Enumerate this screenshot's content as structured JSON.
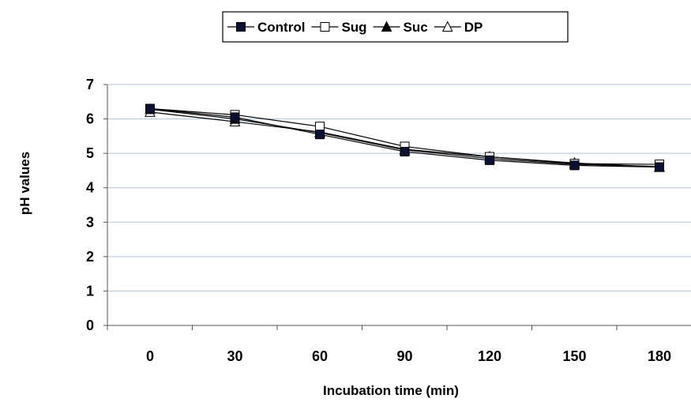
{
  "chart_data": {
    "type": "line",
    "x": [
      0,
      30,
      60,
      90,
      120,
      150,
      180
    ],
    "xlabel": "Incubation time (min)",
    "ylabel": "pH values",
    "ylim": [
      0,
      7
    ],
    "yticks": [
      0,
      1,
      2,
      3,
      4,
      5,
      6,
      7
    ],
    "grid": true,
    "legend_position": "top",
    "series": [
      {
        "name": "Control",
        "marker": "filled-square",
        "color": "#000000",
        "values": [
          6.3,
          6.05,
          5.55,
          5.05,
          4.8,
          4.65,
          4.6
        ]
      },
      {
        "name": "Sug",
        "marker": "open-square",
        "color": "#000000",
        "values": [
          6.3,
          6.12,
          5.78,
          5.2,
          4.9,
          4.7,
          4.68
        ]
      },
      {
        "name": "Suc",
        "marker": "filled-triangle",
        "color": "#000000",
        "values": [
          6.28,
          6.0,
          5.6,
          5.1,
          4.85,
          4.68,
          4.62
        ]
      },
      {
        "name": "DP",
        "marker": "open-triangle",
        "color": "#000000",
        "values": [
          6.2,
          5.92,
          5.62,
          5.12,
          4.9,
          4.72,
          4.6
        ]
      }
    ],
    "gridline_color": "#a9c4e0"
  }
}
